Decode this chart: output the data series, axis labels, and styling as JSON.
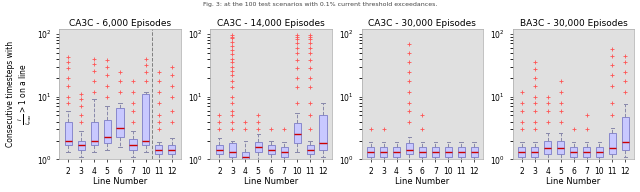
{
  "panels": [
    {
      "title": "CA3C - 6,000 Episodes",
      "lines": [
        "2",
        "3",
        "4",
        "5",
        "6",
        "7",
        "10",
        "11",
        "12"
      ],
      "boxes": [
        {
          "q1": 1.7,
          "med": 2.0,
          "q3": 4.0,
          "whislo": 1.3,
          "whishi": 6.0,
          "fliers": [
            8,
            10,
            15,
            20,
            28,
            36,
            42
          ]
        },
        {
          "q1": 1.4,
          "med": 1.7,
          "q3": 2.0,
          "whislo": 1.1,
          "whishi": 2.8,
          "fliers": [
            4,
            5,
            7,
            9,
            11
          ]
        },
        {
          "q1": 1.7,
          "med": 2.0,
          "q3": 4.0,
          "whislo": 1.3,
          "whishi": 9.0,
          "fliers": [
            12,
            18,
            26,
            33,
            39
          ]
        },
        {
          "q1": 1.8,
          "med": 2.3,
          "q3": 4.2,
          "whislo": 1.4,
          "whishi": 7.0,
          "fliers": [
            10,
            15,
            22,
            30,
            38
          ]
        },
        {
          "q1": 2.3,
          "med": 3.2,
          "q3": 6.5,
          "whislo": 1.6,
          "whishi": 8.0,
          "fliers": [
            12,
            18,
            25
          ]
        },
        {
          "q1": 1.4,
          "med": 1.7,
          "q3": 2.1,
          "whislo": 1.1,
          "whishi": 2.8,
          "fliers": [
            4,
            6,
            8,
            12,
            18
          ]
        },
        {
          "q1": 1.7,
          "med": 2.0,
          "q3": 11.0,
          "whislo": 1.3,
          "whishi": 12.0,
          "fliers": [
            18,
            25,
            32,
            40
          ]
        },
        {
          "q1": 1.2,
          "med": 1.4,
          "q3": 1.7,
          "whislo": 1.0,
          "whishi": 1.9,
          "fliers": [
            3,
            4,
            5,
            8,
            12,
            18,
            25
          ]
        },
        {
          "q1": 1.2,
          "med": 1.4,
          "q3": 1.7,
          "whislo": 1.0,
          "whishi": 2.2,
          "fliers": [
            4,
            6,
            10,
            15,
            22,
            30
          ]
        }
      ],
      "dashed_vline": 7.5
    },
    {
      "title": "CA3C - 14,000 Episodes",
      "lines": [
        "2",
        "3",
        "4",
        "5",
        "6",
        "7",
        "10",
        "11",
        "12"
      ],
      "boxes": [
        {
          "q1": 1.2,
          "med": 1.4,
          "q3": 1.7,
          "whislo": 1.0,
          "whishi": 2.2,
          "fliers": [
            3,
            4,
            5
          ]
        },
        {
          "q1": 1.1,
          "med": 1.3,
          "q3": 1.8,
          "whislo": 1.0,
          "whishi": 2.0,
          "fliers": [
            3,
            4,
            5,
            6,
            8,
            10,
            14,
            18,
            22,
            26,
            30,
            35,
            40,
            47,
            55,
            65,
            75,
            85,
            90,
            95
          ]
        },
        {
          "q1": 1.0,
          "med": 1.1,
          "q3": 1.3,
          "whislo": 1.0,
          "whishi": 2.0,
          "fliers": [
            3,
            4
          ]
        },
        {
          "q1": 1.3,
          "med": 1.6,
          "q3": 1.9,
          "whislo": 1.0,
          "whishi": 2.5,
          "fliers": [
            3,
            4,
            5
          ]
        },
        {
          "q1": 1.2,
          "med": 1.4,
          "q3": 1.7,
          "whislo": 1.0,
          "whishi": 2.0,
          "fliers": [
            3
          ]
        },
        {
          "q1": 1.1,
          "med": 1.3,
          "q3": 1.6,
          "whislo": 1.0,
          "whishi": 1.9,
          "fliers": [
            3
          ]
        },
        {
          "q1": 1.8,
          "med": 2.5,
          "q3": 3.8,
          "whislo": 1.3,
          "whishi": 5.5,
          "fliers": [
            8,
            14,
            20,
            28,
            38,
            50,
            60,
            72,
            82,
            90,
            95
          ]
        },
        {
          "q1": 1.2,
          "med": 1.4,
          "q3": 1.7,
          "whislo": 1.0,
          "whishi": 2.0,
          "fliers": [
            3,
            5,
            8,
            14,
            20,
            28,
            38,
            50,
            60,
            72,
            82,
            90,
            95
          ]
        },
        {
          "q1": 1.4,
          "med": 1.8,
          "q3": 5.0,
          "whislo": 1.1,
          "whishi": 8.0,
          "fliers": []
        }
      ],
      "dashed_vline": null
    },
    {
      "title": "CA3C - 30,000 Episodes",
      "lines": [
        "2",
        "3",
        "4",
        "5",
        "6",
        "7",
        "10",
        "11",
        "12"
      ],
      "boxes": [
        {
          "q1": 1.1,
          "med": 1.3,
          "q3": 1.6,
          "whislo": 1.0,
          "whishi": 1.9,
          "fliers": [
            3
          ]
        },
        {
          "q1": 1.1,
          "med": 1.3,
          "q3": 1.6,
          "whislo": 1.0,
          "whishi": 1.9,
          "fliers": [
            3
          ]
        },
        {
          "q1": 1.1,
          "med": 1.3,
          "q3": 1.6,
          "whislo": 1.0,
          "whishi": 1.9,
          "fliers": []
        },
        {
          "q1": 1.2,
          "med": 1.4,
          "q3": 1.8,
          "whislo": 1.0,
          "whishi": 2.3,
          "fliers": [
            4,
            6,
            8,
            12,
            18,
            25,
            35,
            50,
            68
          ]
        },
        {
          "q1": 1.1,
          "med": 1.3,
          "q3": 1.6,
          "whislo": 1.0,
          "whishi": 1.9,
          "fliers": [
            3,
            5
          ]
        },
        {
          "q1": 1.1,
          "med": 1.3,
          "q3": 1.6,
          "whislo": 1.0,
          "whishi": 1.9,
          "fliers": []
        },
        {
          "q1": 1.1,
          "med": 1.3,
          "q3": 1.6,
          "whislo": 1.0,
          "whishi": 1.9,
          "fliers": []
        },
        {
          "q1": 1.1,
          "med": 1.3,
          "q3": 1.6,
          "whislo": 1.0,
          "whishi": 1.9,
          "fliers": []
        },
        {
          "q1": 1.1,
          "med": 1.3,
          "q3": 1.6,
          "whislo": 1.0,
          "whishi": 1.9,
          "fliers": []
        }
      ],
      "dashed_vline": null
    },
    {
      "title": "BA3C - 30,000 Episodes",
      "lines": [
        "2",
        "3",
        "4",
        "5",
        "6",
        "7",
        "10",
        "11",
        "12"
      ],
      "boxes": [
        {
          "q1": 1.1,
          "med": 1.3,
          "q3": 1.6,
          "whislo": 1.0,
          "whishi": 1.9,
          "fliers": [
            3,
            4,
            6,
            8,
            12
          ]
        },
        {
          "q1": 1.1,
          "med": 1.3,
          "q3": 1.6,
          "whislo": 1.0,
          "whishi": 1.9,
          "fliers": [
            3,
            4,
            6,
            8,
            10,
            15,
            20,
            27,
            35
          ]
        },
        {
          "q1": 1.2,
          "med": 1.5,
          "q3": 2.0,
          "whislo": 1.0,
          "whishi": 2.6,
          "fliers": [
            4,
            6,
            8,
            10
          ]
        },
        {
          "q1": 1.2,
          "med": 1.5,
          "q3": 2.0,
          "whislo": 1.0,
          "whishi": 2.6,
          "fliers": [
            4,
            6,
            8,
            12,
            18
          ]
        },
        {
          "q1": 1.1,
          "med": 1.3,
          "q3": 1.6,
          "whislo": 1.0,
          "whishi": 1.9,
          "fliers": [
            3
          ]
        },
        {
          "q1": 1.1,
          "med": 1.3,
          "q3": 1.6,
          "whislo": 1.0,
          "whishi": 1.9,
          "fliers": [
            3,
            5
          ]
        },
        {
          "q1": 1.1,
          "med": 1.3,
          "q3": 1.6,
          "whislo": 1.0,
          "whishi": 1.9,
          "fliers": []
        },
        {
          "q1": 1.2,
          "med": 1.5,
          "q3": 2.6,
          "whislo": 1.0,
          "whishi": 3.2,
          "fliers": [
            5,
            8,
            15,
            22,
            32,
            45,
            58
          ]
        },
        {
          "q1": 1.4,
          "med": 1.9,
          "q3": 4.8,
          "whislo": 1.1,
          "whishi": 7.5,
          "fliers": [
            12,
            18,
            25,
            35,
            45
          ]
        }
      ],
      "dashed_vline": null
    }
  ],
  "ylabel": "Consecutive timesteps with\n$\\frac{I}{I_{max}} > 1$ on a line",
  "suptitle": "Fig. 3: at the 100 test scenarios with 0.1% current threshold exceedances.",
  "box_facecolor": "#c8c8ff",
  "box_edgecolor": "#8888cc",
  "median_color": "#cc0000",
  "whisker_color": "#8888aa",
  "flier_color": "#ff5555",
  "bg_color": "#e0e0e0",
  "ylim": [
    1.0,
    120
  ],
  "title_fontsize": 6.5,
  "label_fontsize": 6.0,
  "tick_fontsize": 5.5
}
